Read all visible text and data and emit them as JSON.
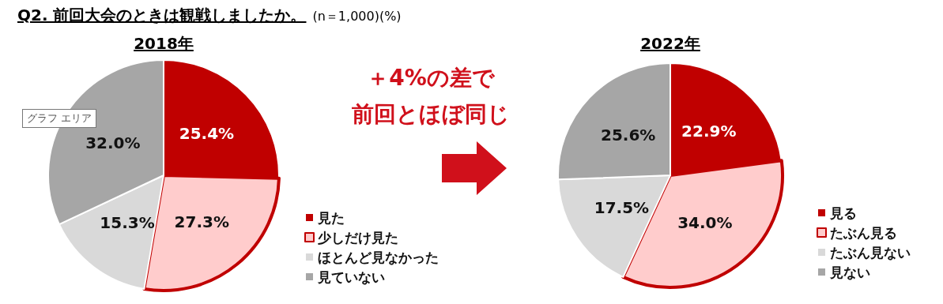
{
  "chart_data": [
    {
      "type": "other",
      "title": "Q2. 前回大会のときは観戦しましたか。",
      "subtitle": "(n＝1,000)(%)",
      "annotations": [
        "＋4%の差で",
        "前回とほぼ同じ"
      ]
    },
    {
      "type": "pie",
      "title": "2018年",
      "categories": [
        "見た",
        "少しだけ見た",
        "ほとんど見なかった",
        "見ていない"
      ],
      "values": [
        25.4,
        27.3,
        15.3,
        32.0
      ],
      "value_labels": [
        "25.4%",
        "27.3%",
        "15.3%",
        "32.0%"
      ],
      "colors": [
        "#c00000",
        "#ffcccc",
        "#d9d9d9",
        "#a6a6a6"
      ],
      "legend": "right",
      "annotations": [
        "グラフ エリア"
      ]
    },
    {
      "type": "pie",
      "title": "2022年",
      "categories": [
        "見る",
        "たぶん見る",
        "たぶん見ない",
        "見ない"
      ],
      "values": [
        22.9,
        34.0,
        17.5,
        25.6
      ],
      "value_labels": [
        "22.9%",
        "34.0%",
        "17.5%",
        "25.6%"
      ],
      "colors": [
        "#c00000",
        "#ffcccc",
        "#d9d9d9",
        "#a6a6a6"
      ],
      "legend": "right"
    }
  ]
}
